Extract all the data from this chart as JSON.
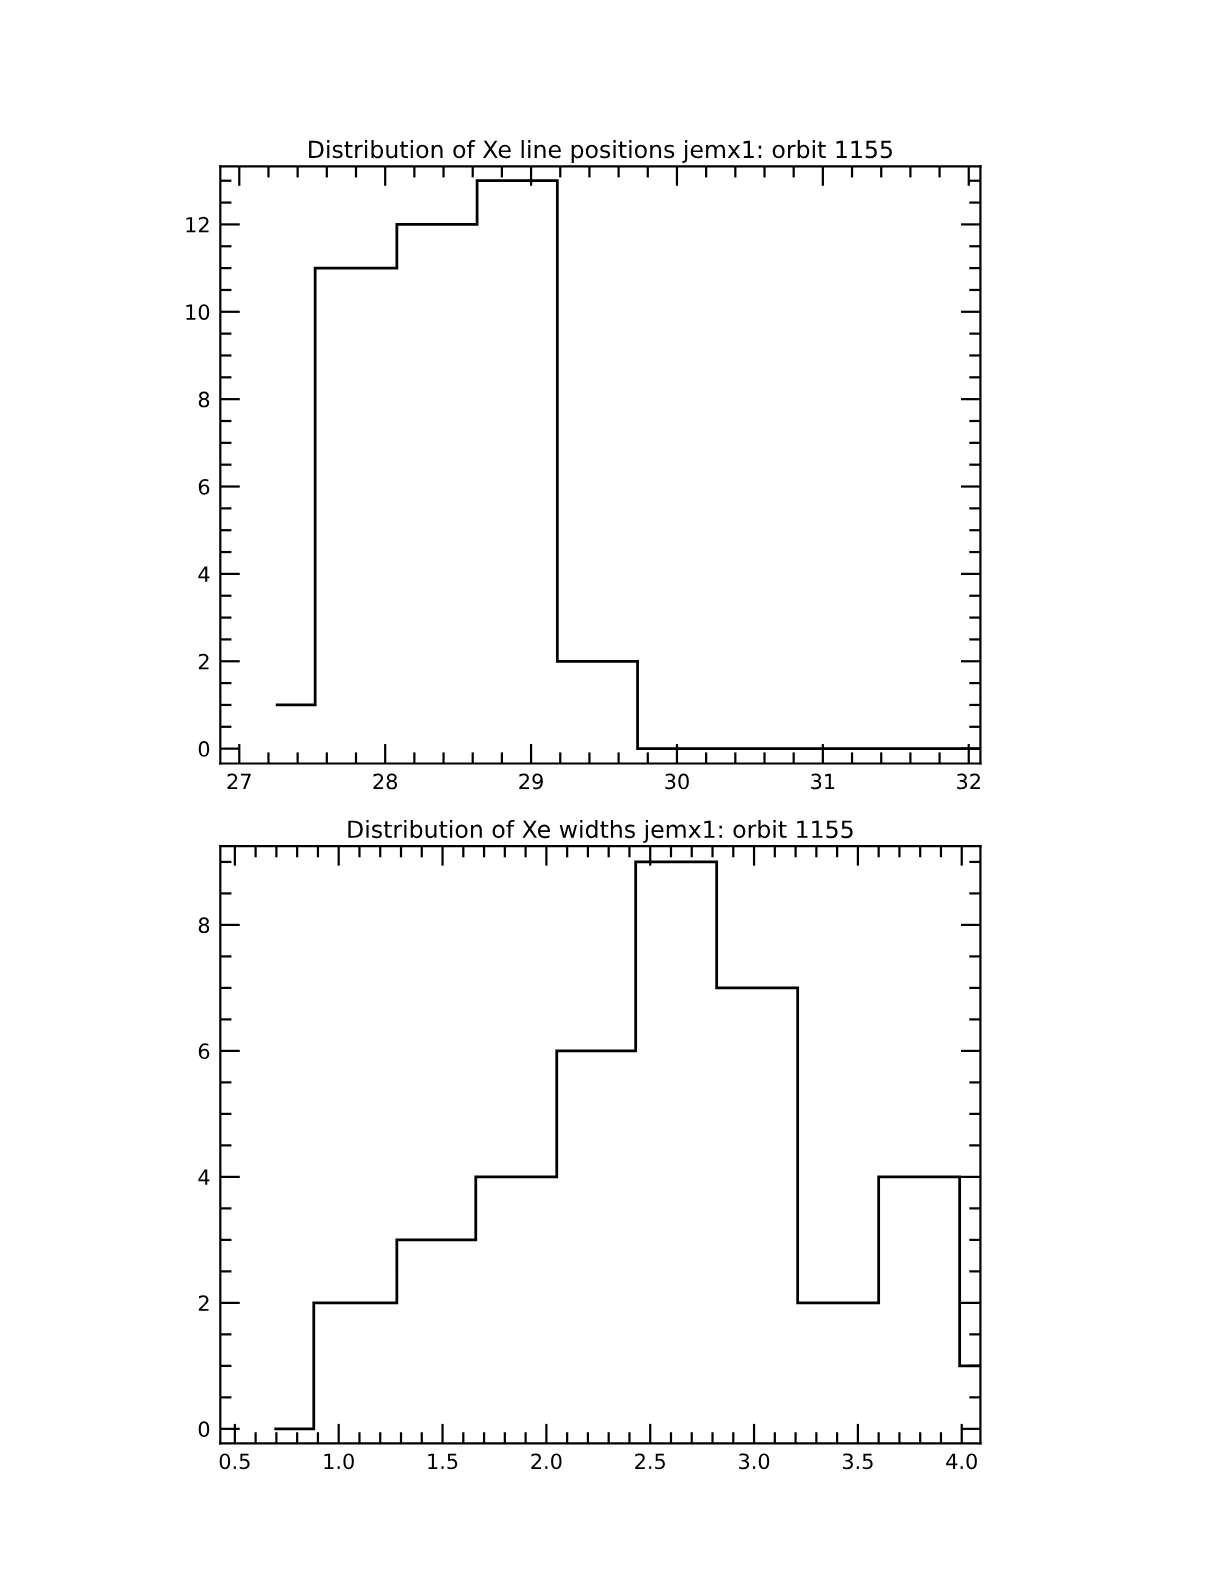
{
  "chart_data": [
    {
      "type": "histogram",
      "title": "Distribution of Xe line positions jemx1: orbit 1155",
      "bins": [
        27.25,
        27.52,
        28.08,
        28.63,
        29.18,
        29.73,
        32.08
      ],
      "values": [
        1,
        11,
        12,
        13,
        2,
        0
      ],
      "color": "#000000",
      "xlim": [
        26.87,
        32.08
      ],
      "xticks": [
        27,
        28,
        29,
        30,
        31,
        32
      ],
      "ylim": [
        -0.34,
        13.33
      ],
      "yticks": [
        0,
        2,
        4,
        6,
        8,
        10,
        12
      ],
      "grid": false
    },
    {
      "type": "histogram",
      "title": "Distribution of Xe widths jemx1: orbit 1155",
      "bins": [
        0.69,
        0.88,
        1.28,
        1.66,
        2.05,
        2.43,
        2.82,
        3.21,
        3.6,
        3.99,
        4.09
      ],
      "values": [
        0,
        2,
        3,
        4,
        6,
        9,
        7,
        2,
        4,
        1
      ],
      "color": "#000000",
      "xlim": [
        0.43,
        4.09
      ],
      "xticks": [
        {
          "value": 0.5,
          "label": "0.5"
        },
        {
          "value": 1.0,
          "label": "1.0"
        },
        {
          "value": 1.5,
          "label": "1.5"
        },
        {
          "value": 2.0,
          "label": "2.0"
        },
        {
          "value": 2.5,
          "label": "2.5"
        },
        {
          "value": 3.0,
          "label": "3.0"
        },
        {
          "value": 3.5,
          "label": "3.5"
        },
        {
          "value": 4.0,
          "label": "4.0"
        }
      ],
      "ylim": [
        -0.23,
        9.25
      ],
      "yticks": [
        0,
        2,
        4,
        6,
        8
      ],
      "grid": false
    }
  ]
}
